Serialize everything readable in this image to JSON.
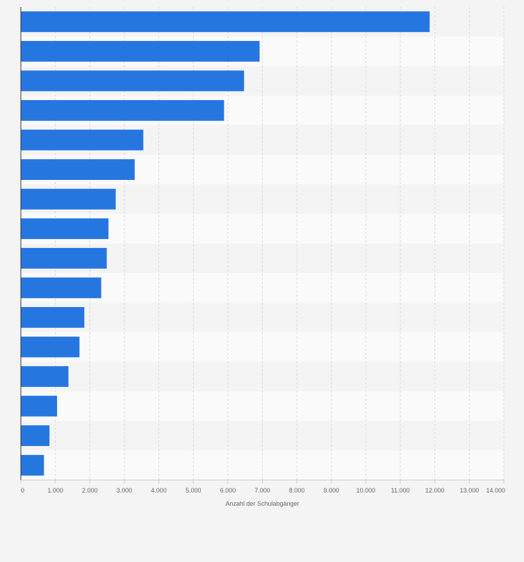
{
  "chart_data": {
    "type": "bar",
    "orientation": "horizontal",
    "xlabel": "Anzahl der Schulabgänger",
    "xlim": [
      0,
      14000
    ],
    "tick_values": [
      0,
      1000,
      2000,
      3000,
      4000,
      5000,
      6000,
      7000,
      8000,
      9000,
      10000,
      11000,
      12000,
      13000,
      14000
    ],
    "tick_labels": [
      "0",
      "1.000",
      "2.000",
      "3.000",
      "4.000",
      "5.000",
      "6.000",
      "7.000",
      "8.000",
      "9.000",
      "10.000",
      "11.000",
      "12.000",
      "13.000",
      "14.000"
    ],
    "values": [
      11850,
      6920,
      6470,
      5890,
      3550,
      3300,
      2750,
      2540,
      2490,
      2330,
      1840,
      1700,
      1380,
      1050,
      830,
      670
    ],
    "bar_color": "#2676e0",
    "band_colors": [
      "#f4f4f4",
      "#fafafa"
    ],
    "grid": true
  }
}
